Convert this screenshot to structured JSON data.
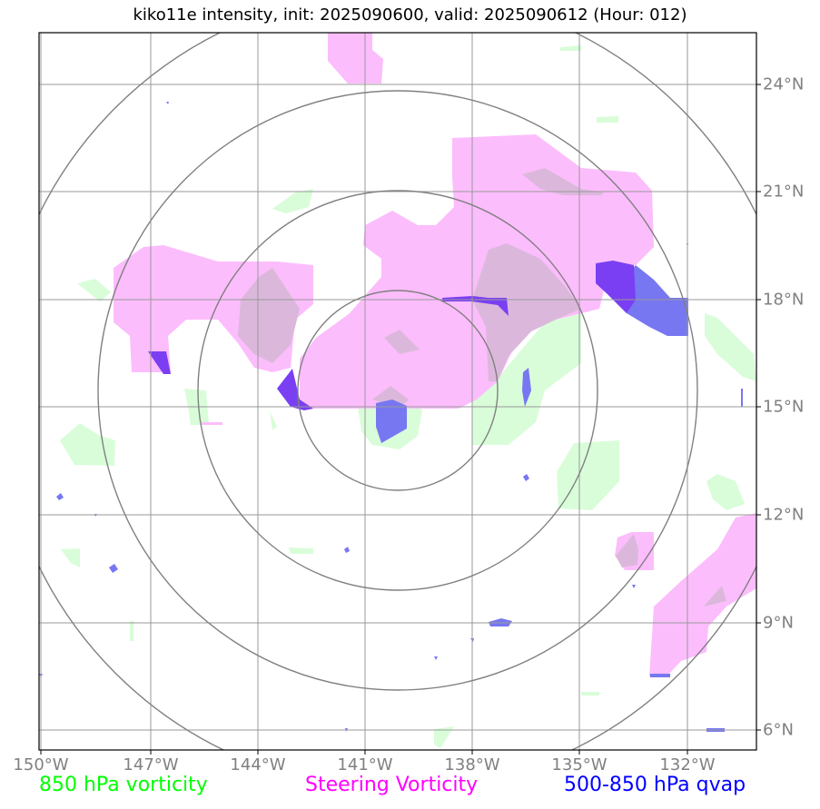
{
  "title": "kiko11e intensity, init: 2025090600, valid: 2025090612 (Hour: 012)",
  "lon_labels": [
    "150°W",
    "147°W",
    "144°W",
    "141°W",
    "138°W",
    "135°W",
    "132°W"
  ],
  "lat_labels": [
    "24°N",
    "21°N",
    "18°N",
    "15°N",
    "12°N",
    "9°N",
    "6°N"
  ],
  "legend": {
    "vort850": {
      "label": "850 hPa vorticity",
      "color": "#00ff00"
    },
    "steering": {
      "label": "Steering Vorticity",
      "color": "#ff00ff"
    },
    "qvap": {
      "label": "500-850 hPa qvap",
      "color": "#0000ff"
    }
  },
  "colors": {
    "green_fill": "#d9fdd9",
    "magenta_fill": "#fcbdfc",
    "overlap_fill": "#dbb8db",
    "blue_fill": "#7777f2",
    "purple_fill": "#7a3ff2",
    "range_ring": "#808080",
    "grid": "#999999"
  },
  "range_rings": {
    "center_lon": -140.1,
    "center_lat": 15.5,
    "count": 4
  }
}
